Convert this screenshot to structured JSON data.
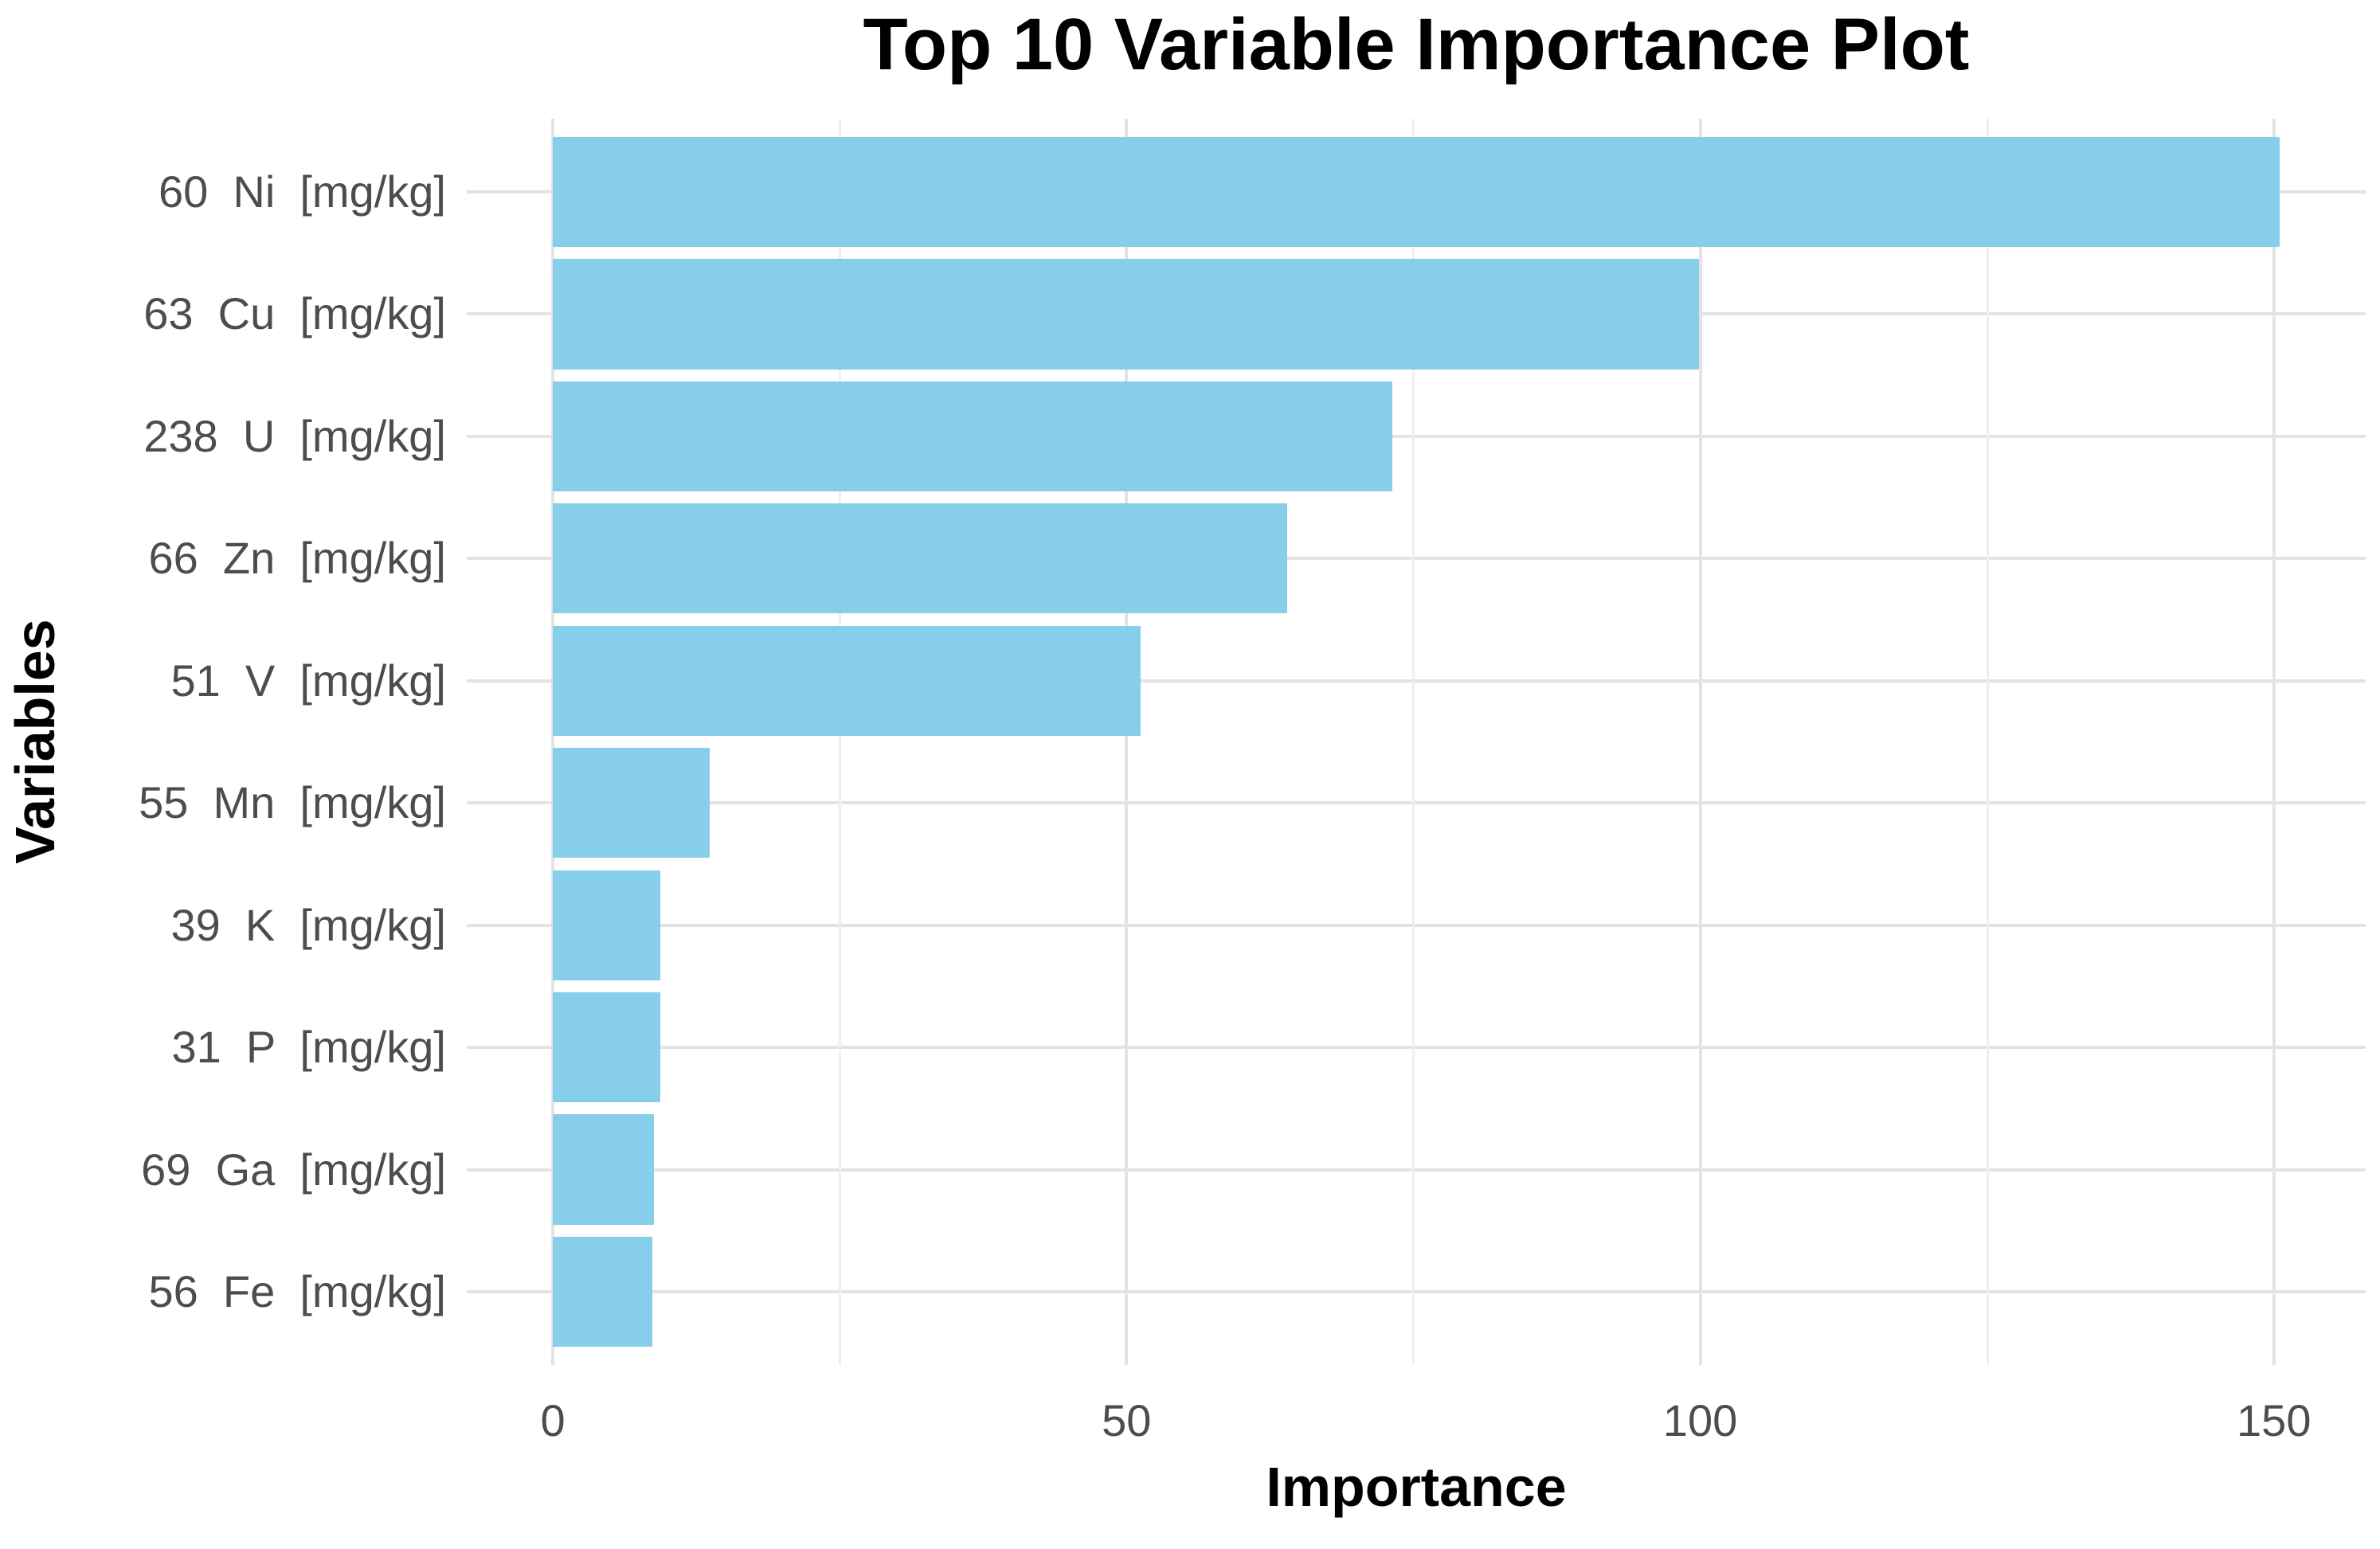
{
  "chart_data": {
    "type": "bar",
    "orientation": "horizontal",
    "title": "Top 10 Variable Importance Plot",
    "xlabel": "Importance",
    "ylabel": "Variables",
    "categories": [
      "60  Ni  [mg/kg]",
      "63  Cu  [mg/kg]",
      "238  U  [mg/kg]",
      "66  Zn  [mg/kg]",
      "51  V  [mg/kg]",
      "55  Mn  [mg/kg]",
      "39  K  [mg/kg]",
      "31  P  [mg/kg]",
      "69  Ga  [mg/kg]",
      "56  Fe  [mg/kg]"
    ],
    "values": [
      150.5,
      99.9,
      73.2,
      64.0,
      51.2,
      13.7,
      9.4,
      9.4,
      8.8,
      8.7
    ],
    "x_ticks": [
      0,
      50,
      100,
      150
    ],
    "x_minor_ticks": [
      25,
      75,
      125
    ],
    "xlim": [
      -7.5,
      158
    ],
    "bar_relative_width": 0.9,
    "grid": true,
    "legend": false,
    "colors": {
      "bar": "#87CEEB",
      "grid_major": "#E3E3E3",
      "grid_minor": "#EFEFEF",
      "tick_label": "#4D4D4D",
      "title": "#000000",
      "background": "#FFFFFF"
    }
  }
}
